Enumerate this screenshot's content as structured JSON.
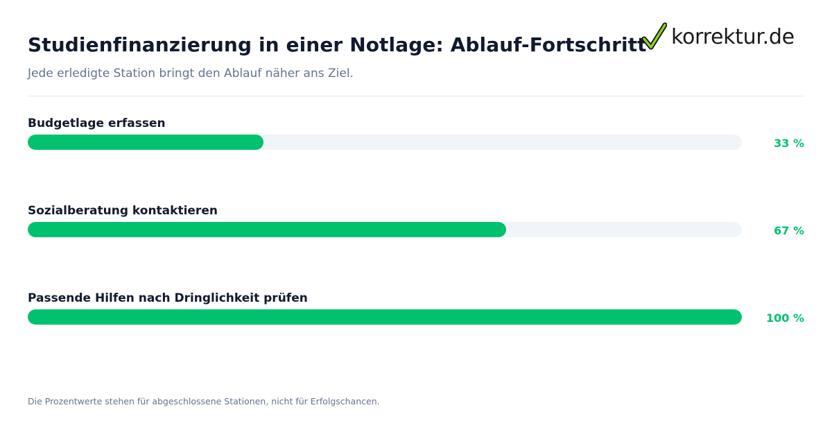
{
  "header": {
    "title": "Studienfinanzierung in einer Notlage: Ablauf-Fortschritt",
    "subtitle": "Jede erledigte Station bringt den Ablauf näher ans Ziel.",
    "logo_text": "korrektur.de",
    "logo_icon": "checkmark-icon"
  },
  "chart_data": {
    "type": "bar",
    "orientation": "horizontal",
    "categories": [
      "Budgetlage erfassen",
      "Sozialberatung kontaktieren",
      "Passende Hilfen nach Dringlichkeit prüfen"
    ],
    "values": [
      33,
      67,
      100
    ],
    "value_labels": [
      "33 %",
      "67 %",
      "100 %"
    ],
    "xlim": [
      0,
      100
    ],
    "grid": false,
    "bar_color": "#00c26e",
    "track_color": "#f1f5f9"
  },
  "footer": {
    "note": "Die Prozentwerte stehen für abgeschlossene Stationen, nicht für Erfolgschancen."
  }
}
